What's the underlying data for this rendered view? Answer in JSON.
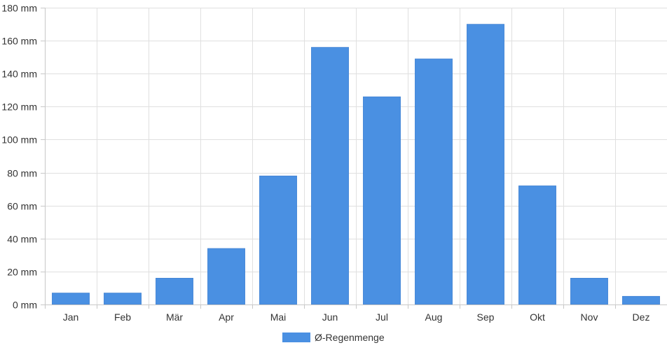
{
  "chart_data": {
    "type": "bar",
    "categories": [
      "Jan",
      "Feb",
      "Mär",
      "Apr",
      "Mai",
      "Jun",
      "Jul",
      "Aug",
      "Sep",
      "Okt",
      "Nov",
      "Dez"
    ],
    "series": [
      {
        "name": "Ø-Regenmenge",
        "color": "#4a90e2",
        "values": [
          7,
          7,
          16,
          34,
          78,
          156,
          126,
          149,
          170,
          72,
          16,
          5
        ]
      }
    ],
    "ylim": [
      0,
      180
    ],
    "yticks": [
      0,
      20,
      40,
      60,
      80,
      100,
      120,
      140,
      160,
      180
    ],
    "ytick_labels": [
      "0 mm",
      "20 mm",
      "40 mm",
      "60 mm",
      "80 mm",
      "100 mm",
      "120 mm",
      "140 mm",
      "160 mm",
      "180 mm"
    ],
    "grid": true,
    "legend_position": "bottom"
  }
}
